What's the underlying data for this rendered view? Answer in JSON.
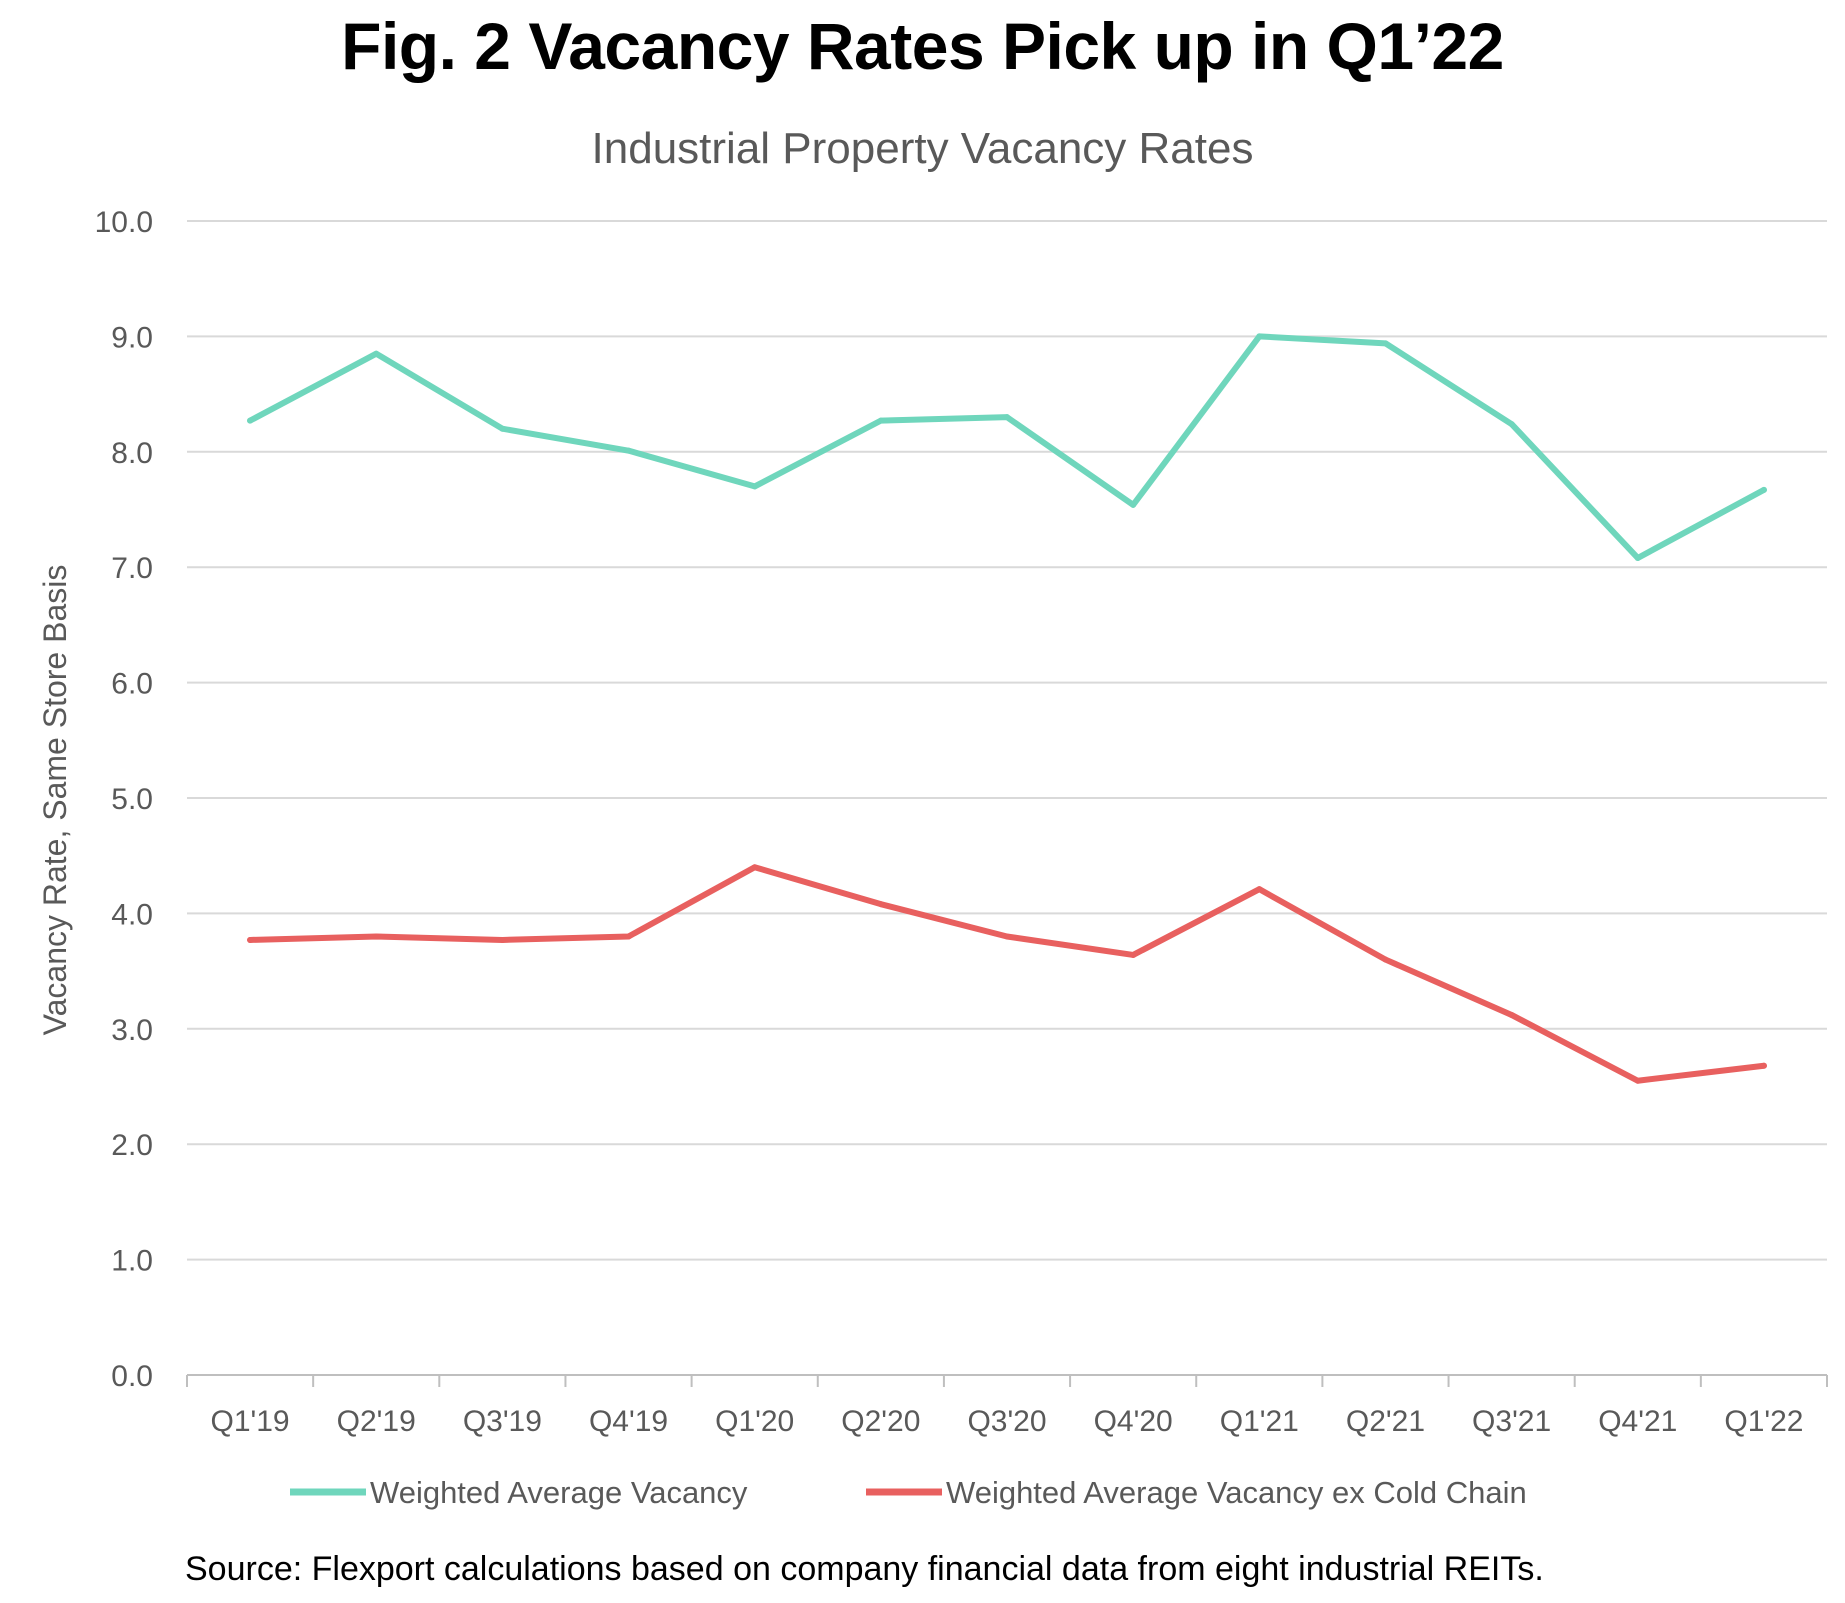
{
  "figure": {
    "title": "Fig. 2 Vacancy Rates Pick up in Q1’22",
    "source": "Source: Flexport calculations based on company financial data from eight industrial REITs."
  },
  "chart_data": {
    "type": "line",
    "title": "Industrial Property Vacancy Rates",
    "xlabel": "",
    "ylabel": "Vacancy Rate, Same Store Basis",
    "ylim": [
      0,
      10
    ],
    "yticks": [
      "0.0",
      "1.0",
      "2.0",
      "3.0",
      "4.0",
      "5.0",
      "6.0",
      "7.0",
      "8.0",
      "9.0",
      "10.0"
    ],
    "grid": true,
    "legend_position": "bottom",
    "categories": [
      "Q1'19",
      "Q2'19",
      "Q3'19",
      "Q4'19",
      "Q1'20",
      "Q2'20",
      "Q3'20",
      "Q4'20",
      "Q1'21",
      "Q2'21",
      "Q3'21",
      "Q4'21",
      "Q1'22"
    ],
    "series": [
      {
        "name": "Weighted Average Vacancy",
        "color": "#6fd6bc",
        "values": [
          8.27,
          8.85,
          8.2,
          8.01,
          7.7,
          8.27,
          8.3,
          7.54,
          9.0,
          8.94,
          8.24,
          7.08,
          7.67
        ]
      },
      {
        "name": "Weighted Average Vacancy ex Cold Chain",
        "color": "#e8605f",
        "values": [
          3.77,
          3.8,
          3.77,
          3.8,
          4.4,
          4.08,
          3.8,
          3.64,
          4.21,
          3.6,
          3.12,
          2.55,
          2.68
        ]
      }
    ]
  }
}
